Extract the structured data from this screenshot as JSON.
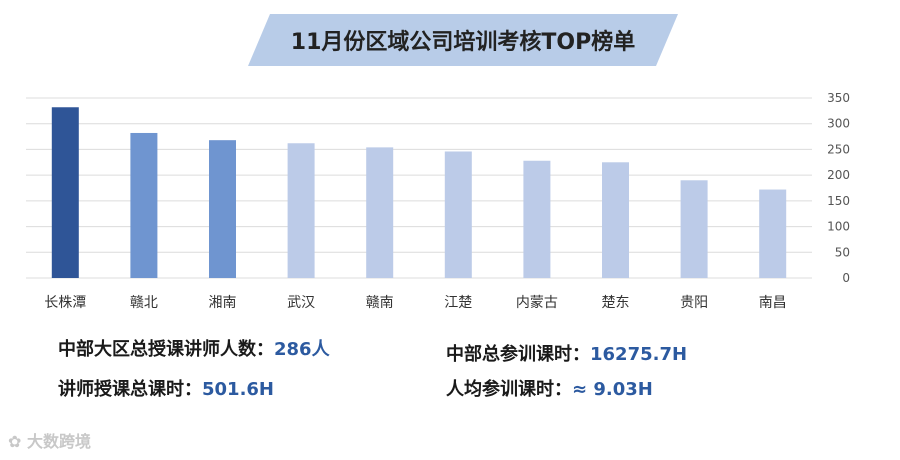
{
  "title": "11月份区域公司培训考核TOP榜单",
  "chart_data": {
    "type": "bar",
    "categories": [
      "长株潭",
      "赣北",
      "湘南",
      "武汉",
      "赣南",
      "江楚",
      "内蒙古",
      "楚东",
      "贵阳",
      "南昌"
    ],
    "values": [
      332,
      282,
      268,
      262,
      254,
      246,
      228,
      225,
      190,
      172
    ],
    "ylim": [
      0,
      350
    ],
    "yticks": [
      0,
      50,
      100,
      150,
      200,
      250,
      300,
      350
    ],
    "y_axis_side": "right",
    "grid": true,
    "bar_colors": [
      "#2f5597",
      "#6f95d0",
      "#6f95d0",
      "#bccbe8",
      "#bccbe8",
      "#bccbe8",
      "#bccbe8",
      "#bccbe8",
      "#bccbe8",
      "#bccbe8"
    ]
  },
  "stats": {
    "lecturers_label": "中部大区总授课讲师人数：",
    "lecturers_value": "286人",
    "lecture_hours_label": "讲师授课总课时：",
    "lecture_hours_value": "501.6H",
    "training_hours_label": "中部总参训课时：",
    "training_hours_value": "16275.7H",
    "avg_hours_label": "人均参训课时：",
    "avg_hours_value": "≈ 9.03H"
  },
  "watermark": "大数跨境",
  "colors": {
    "banner": "#b8cce8",
    "accent": "#2c5aa0"
  }
}
